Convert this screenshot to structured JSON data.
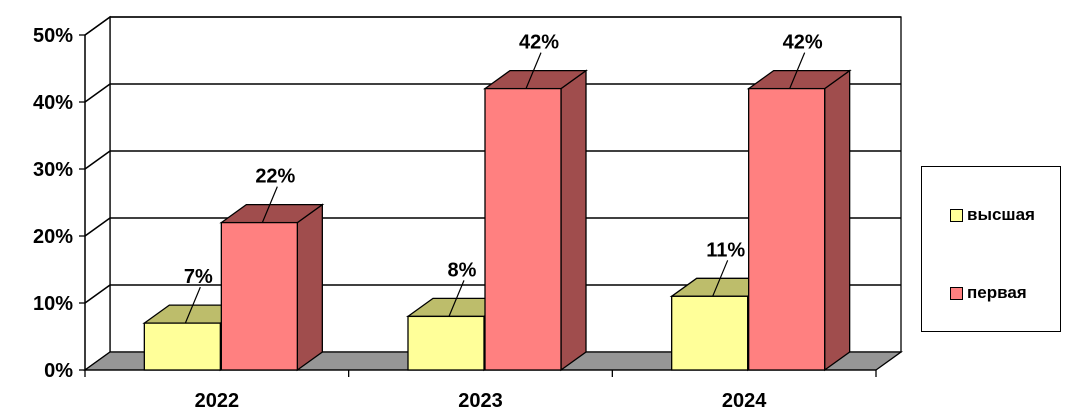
{
  "chart_data": {
    "type": "bar",
    "categories": [
      "2022",
      "2023",
      "2024"
    ],
    "series": [
      {
        "name": "высшая",
        "values": [
          7,
          8,
          11
        ],
        "labels": [
          "7%",
          "8%",
          "11%"
        ],
        "color": "#FFFF99",
        "side_color": "#BDBD6B"
      },
      {
        "name": "первая",
        "values": [
          22,
          42,
          42
        ],
        "labels": [
          "22%",
          "42%",
          "42%"
        ],
        "color": "#FF8080",
        "side_color": "#A04D4D"
      }
    ],
    "ylim": [
      0,
      50
    ],
    "yticks": [
      "0%",
      "10%",
      "20%",
      "30%",
      "40%",
      "50%"
    ],
    "grid": true,
    "legend_position": "right",
    "floor_color": "#969696"
  }
}
